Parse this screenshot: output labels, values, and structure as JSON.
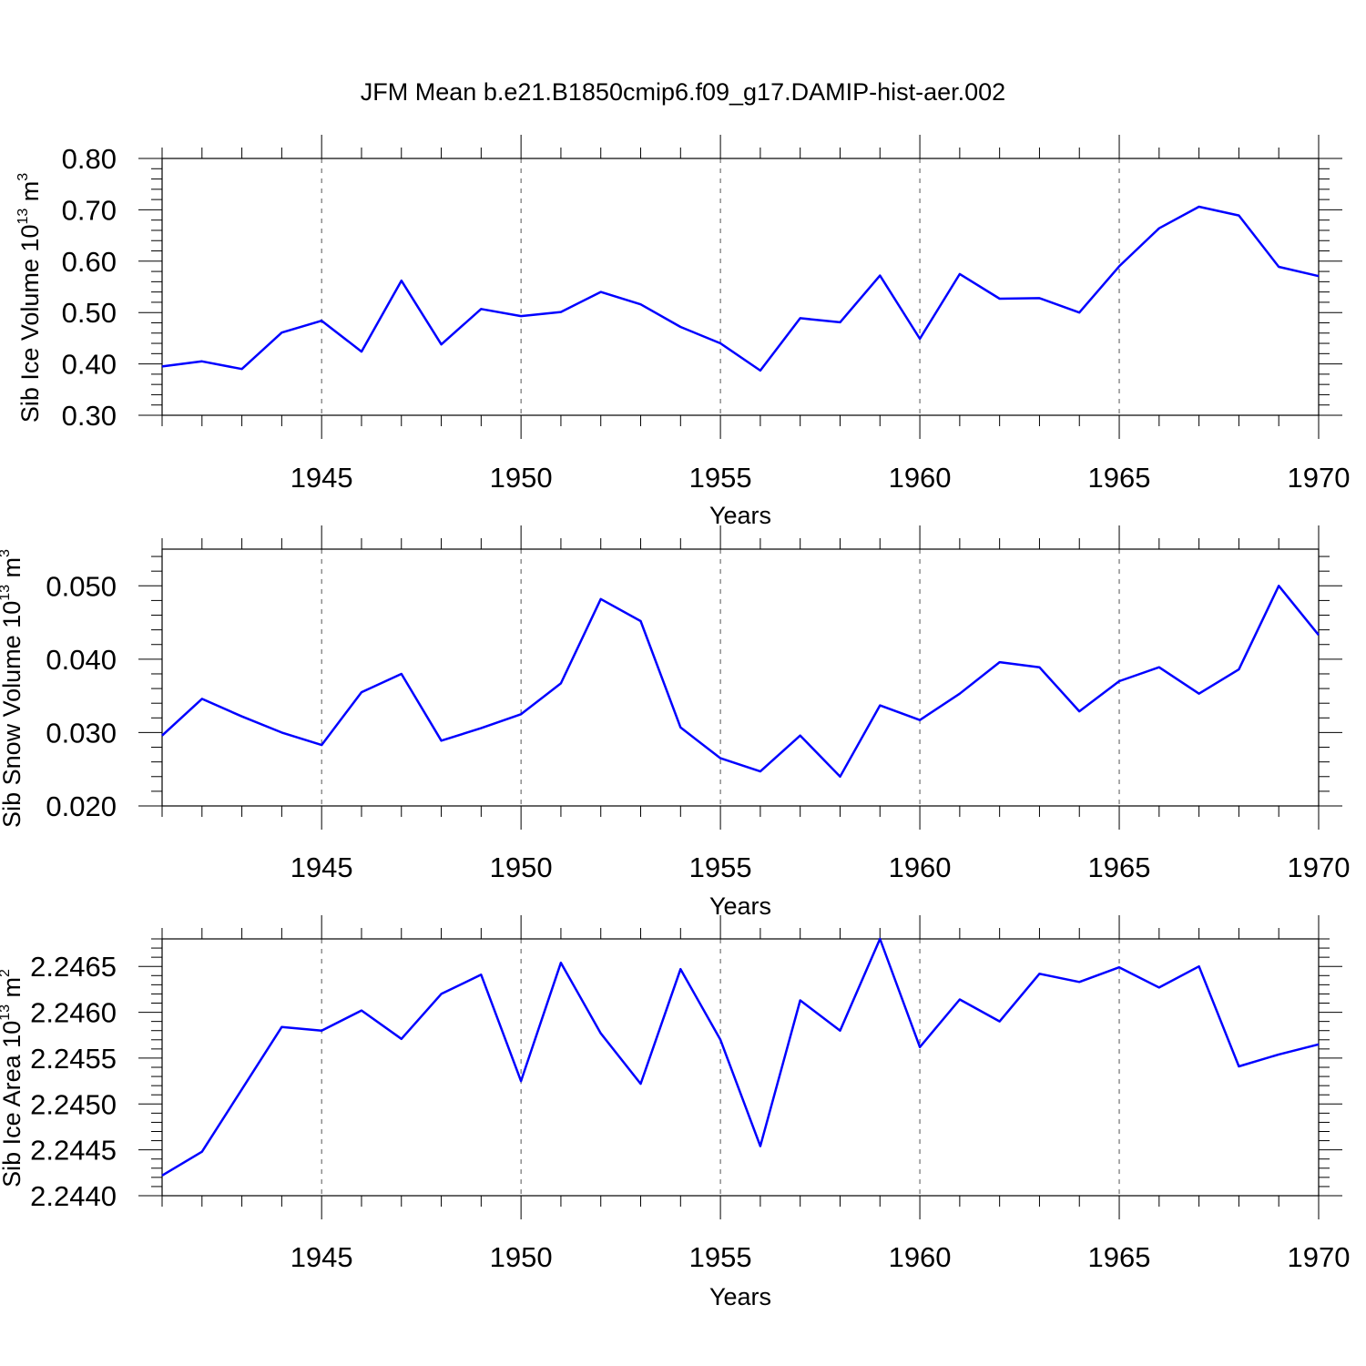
{
  "chart_data": [
    {
      "type": "line",
      "title": "JFM Mean b.e21.B1850cmip6.f09_g17.DAMIP-hist-aer.002",
      "xlabel": "Years",
      "ylabel": "Sib Ice Volume 10",
      "ylabel_sup": "13",
      "ylabel_unit": "m",
      "ylabel_unit_sup": "3",
      "x": [
        1941,
        1942,
        1943,
        1944,
        1945,
        1946,
        1947,
        1948,
        1949,
        1950,
        1951,
        1952,
        1953,
        1954,
        1955,
        1956,
        1957,
        1958,
        1959,
        1960,
        1961,
        1962,
        1963,
        1964,
        1965,
        1966,
        1967,
        1968,
        1969,
        1970
      ],
      "values": [
        0.395,
        0.405,
        0.39,
        0.461,
        0.484,
        0.424,
        0.562,
        0.438,
        0.507,
        0.493,
        0.501,
        0.54,
        0.516,
        0.472,
        0.44,
        0.387,
        0.489,
        0.481,
        0.572,
        0.449,
        0.575,
        0.527,
        0.528,
        0.5,
        0.59,
        0.664,
        0.706,
        0.689,
        0.589,
        0.571
      ],
      "xlim": [
        1941,
        1970
      ],
      "ylim": [
        0.3,
        0.8
      ],
      "yticks": [
        "0.30",
        "0.40",
        "0.50",
        "0.60",
        "0.70",
        "0.80"
      ],
      "ytick_values": [
        0.3,
        0.4,
        0.5,
        0.6,
        0.7,
        0.8
      ],
      "xticks": [
        "1945",
        "1950",
        "1955",
        "1960",
        "1965",
        "1970"
      ],
      "xtick_values": [
        1945,
        1950,
        1955,
        1960,
        1965,
        1970
      ],
      "grid": "vertical dashed at labeled years",
      "color": "#0000ff"
    },
    {
      "type": "line",
      "xlabel": "Years",
      "ylabel": "Sib Snow Volume 10",
      "ylabel_sup": "13",
      "ylabel_unit": "m",
      "ylabel_unit_sup": "3",
      "x": [
        1941,
        1942,
        1943,
        1944,
        1945,
        1946,
        1947,
        1948,
        1949,
        1950,
        1951,
        1952,
        1953,
        1954,
        1955,
        1956,
        1957,
        1958,
        1959,
        1960,
        1961,
        1962,
        1963,
        1964,
        1965,
        1966,
        1967,
        1968,
        1969,
        1970
      ],
      "values": [
        0.0296,
        0.0346,
        0.0322,
        0.03,
        0.0283,
        0.0355,
        0.038,
        0.0289,
        0.0306,
        0.0325,
        0.0367,
        0.0482,
        0.0452,
        0.0307,
        0.0265,
        0.0247,
        0.0296,
        0.024,
        0.0337,
        0.0317,
        0.0353,
        0.0396,
        0.0389,
        0.0329,
        0.037,
        0.0389,
        0.0353,
        0.0386,
        0.05,
        0.0433
      ],
      "xlim": [
        1941,
        1970
      ],
      "ylim": [
        0.02,
        0.055
      ],
      "yticks": [
        "0.020",
        "0.030",
        "0.040",
        "0.050"
      ],
      "ytick_values": [
        0.02,
        0.03,
        0.04,
        0.05
      ],
      "xticks": [
        "1945",
        "1950",
        "1955",
        "1960",
        "1965",
        "1970"
      ],
      "xtick_values": [
        1945,
        1950,
        1955,
        1960,
        1965,
        1970
      ],
      "grid": "vertical dashed at labeled years",
      "color": "#0000ff"
    },
    {
      "type": "line",
      "xlabel": "Years",
      "ylabel": "Sib Ice Area 10",
      "ylabel_sup": "13",
      "ylabel_unit": "m",
      "ylabel_unit_sup": "2",
      "x": [
        1941,
        1942,
        1943,
        1944,
        1945,
        1946,
        1947,
        1948,
        1949,
        1950,
        1951,
        1952,
        1953,
        1954,
        1955,
        1956,
        1957,
        1958,
        1959,
        1960,
        1961,
        1962,
        1963,
        1964,
        1965,
        1966,
        1967,
        1968,
        1969,
        1970
      ],
      "values": [
        2.24422,
        2.24448,
        2.24516,
        2.24584,
        2.2458,
        2.24602,
        2.24571,
        2.2462,
        2.24641,
        2.24525,
        2.24654,
        2.24577,
        2.24522,
        2.24647,
        2.2457,
        2.24454,
        2.24613,
        2.2458,
        2.2468,
        2.24562,
        2.24614,
        2.2459,
        2.24642,
        2.24633,
        2.24649,
        2.24627,
        2.2465,
        2.24541,
        2.24554,
        2.24565
      ],
      "xlim": [
        1941,
        1970
      ],
      "ylim": [
        2.244,
        2.2468
      ],
      "yticks": [
        "2.2440",
        "2.2445",
        "2.2450",
        "2.2455",
        "2.2460",
        "2.2465"
      ],
      "ytick_values": [
        2.244,
        2.2445,
        2.245,
        2.2455,
        2.246,
        2.2465
      ],
      "xticks": [
        "1945",
        "1950",
        "1955",
        "1960",
        "1965",
        "1970"
      ],
      "xtick_values": [
        1945,
        1950,
        1955,
        1960,
        1965,
        1970
      ],
      "grid": "vertical dashed at labeled years",
      "color": "#0000ff"
    }
  ]
}
